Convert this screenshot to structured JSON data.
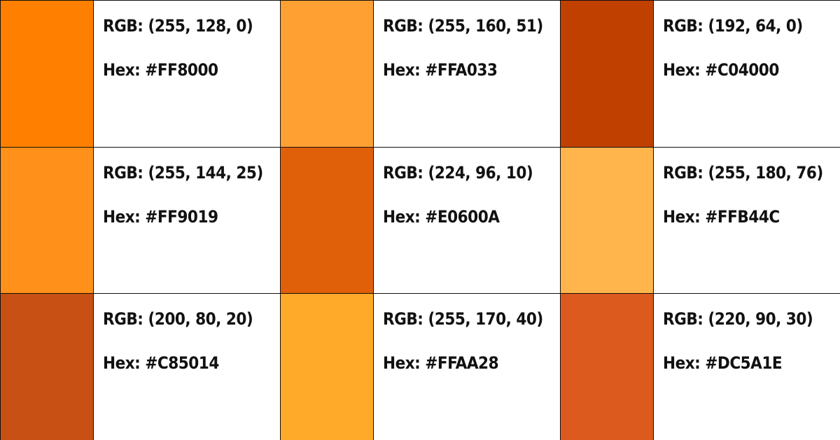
{
  "swatches": [
    {
      "rgb_text": "RGB: (255, 128, 0)",
      "hex_text": "Hex: #FF8000",
      "color": "#FF8000"
    },
    {
      "rgb_text": "RGB: (255, 160, 51)",
      "hex_text": "Hex: #FFA033",
      "color": "#FFA033"
    },
    {
      "rgb_text": "RGB: (192, 64, 0)",
      "hex_text": "Hex: #C04000",
      "color": "#C04000"
    },
    {
      "rgb_text": "RGB: (255, 144, 25)",
      "hex_text": "Hex: #FF9019",
      "color": "#FF9019"
    },
    {
      "rgb_text": "RGB: (224, 96, 10)",
      "hex_text": "Hex: #E0600A",
      "color": "#E0600A"
    },
    {
      "rgb_text": "RGB: (255, 180, 76)",
      "hex_text": "Hex: #FFB44C",
      "color": "#FFB44C"
    },
    {
      "rgb_text": "RGB: (200, 80, 20)",
      "hex_text": "Hex: #C85014",
      "color": "#C85014"
    },
    {
      "rgb_text": "RGB: (255, 170, 40)",
      "hex_text": "Hex: #FFAA28",
      "color": "#FFAA28"
    },
    {
      "rgb_text": "RGB: (220, 90, 30)",
      "hex_text": "Hex: #DC5A1E",
      "color": "#DC5A1E"
    }
  ]
}
